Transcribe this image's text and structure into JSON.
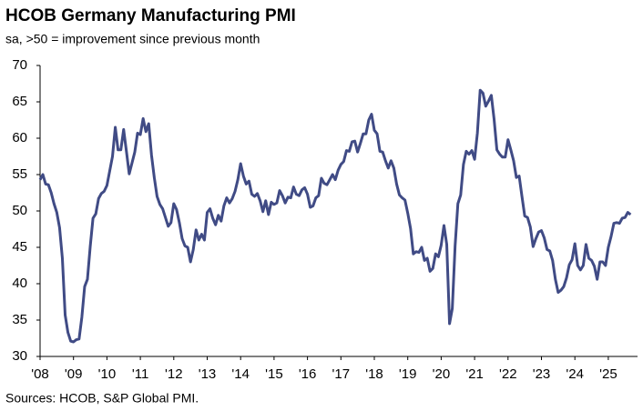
{
  "chart_data": {
    "type": "line",
    "title": "HCOB Germany Manufacturing PMI",
    "subtitle": "sa, >50 = improvement since previous month",
    "source": "Sources: HCOB, S&P Global PMI.",
    "color": "#404b85",
    "ylim": [
      30,
      70
    ],
    "yticks": [
      30,
      35,
      40,
      45,
      50,
      55,
      60,
      65,
      70
    ],
    "grid": false,
    "categories": [
      "'08",
      null,
      null,
      null,
      null,
      null,
      null,
      null,
      null,
      null,
      null,
      null,
      "'09",
      null,
      null,
      null,
      null,
      null,
      null,
      null,
      null,
      null,
      null,
      null,
      "'10",
      null,
      null,
      null,
      null,
      null,
      null,
      null,
      null,
      null,
      null,
      null,
      "'11",
      null,
      null,
      null,
      null,
      null,
      null,
      null,
      null,
      null,
      null,
      null,
      "'12",
      null,
      null,
      null,
      null,
      null,
      null,
      null,
      null,
      null,
      null,
      null,
      "'13",
      null,
      null,
      null,
      null,
      null,
      null,
      null,
      null,
      null,
      null,
      null,
      "'14",
      null,
      null,
      null,
      null,
      null,
      null,
      null,
      null,
      null,
      null,
      null,
      "'15",
      null,
      null,
      null,
      null,
      null,
      null,
      null,
      null,
      null,
      null,
      null,
      "'16",
      null,
      null,
      null,
      null,
      null,
      null,
      null,
      null,
      null,
      null,
      null,
      "'17",
      null,
      null,
      null,
      null,
      null,
      null,
      null,
      null,
      null,
      null,
      null,
      "'18",
      null,
      null,
      null,
      null,
      null,
      null,
      null,
      null,
      null,
      null,
      null,
      "'19",
      null,
      null,
      null,
      null,
      null,
      null,
      null,
      null,
      null,
      null,
      null,
      "'20",
      null,
      null,
      null,
      null,
      null,
      null,
      null,
      null,
      null,
      null,
      null,
      "'21",
      null,
      null,
      null,
      null,
      null,
      null,
      null,
      null,
      null,
      null,
      null,
      "'22",
      null,
      null,
      null,
      null,
      null,
      null,
      null,
      null,
      null,
      null,
      null,
      "'23",
      null,
      null,
      null,
      null,
      null,
      null,
      null,
      null,
      null,
      null,
      null,
      "'24",
      null,
      null,
      null,
      null,
      null,
      null,
      null,
      null,
      null,
      null,
      null,
      "'25",
      null,
      null,
      null,
      null,
      null,
      null,
      null,
      null
    ],
    "values": [
      54.3,
      55.0,
      53.7,
      53.6,
      52.5,
      51.0,
      49.8,
      47.7,
      43.5,
      35.7,
      33.3,
      32.1,
      32.0,
      32.3,
      32.4,
      35.4,
      39.6,
      40.6,
      45.1,
      49.0,
      49.6,
      51.7,
      52.4,
      52.7,
      53.5,
      55.5,
      57.5,
      61.5,
      58.4,
      58.4,
      61.2,
      58.2,
      55.1,
      56.6,
      58.1,
      60.7,
      60.5,
      62.7,
      60.9,
      62.0,
      57.7,
      54.6,
      52.0,
      50.9,
      50.3,
      49.1,
      47.9,
      48.4,
      51.0,
      50.2,
      48.4,
      46.2,
      45.2,
      45.0,
      43.0,
      44.7,
      47.4,
      46.0,
      46.8,
      46.0,
      49.8,
      50.3,
      49.0,
      48.1,
      49.4,
      48.6,
      50.7,
      51.8,
      51.1,
      51.7,
      52.7,
      54.3,
      56.5,
      54.8,
      53.7,
      54.1,
      52.3,
      52.0,
      52.4,
      51.4,
      49.9,
      51.4,
      49.5,
      51.2,
      50.9,
      51.1,
      52.8,
      52.1,
      51.1,
      51.9,
      51.8,
      53.3,
      52.3,
      52.1,
      52.9,
      53.2,
      52.3,
      50.5,
      50.7,
      51.8,
      52.1,
      54.5,
      53.8,
      53.6,
      54.3,
      55.0,
      54.3,
      55.6,
      56.4,
      56.8,
      58.3,
      58.2,
      59.5,
      59.6,
      58.1,
      59.3,
      60.6,
      60.6,
      62.5,
      63.3,
      61.1,
      60.6,
      58.2,
      58.1,
      56.9,
      55.9,
      56.9,
      55.9,
      53.7,
      52.2,
      51.8,
      51.5,
      49.7,
      47.6,
      44.1,
      44.4,
      44.3,
      45.0,
      43.2,
      43.5,
      41.7,
      42.1,
      44.1,
      43.7,
      45.3,
      48.0,
      45.4,
      34.5,
      36.6,
      45.2,
      51.0,
      52.2,
      56.4,
      58.2,
      57.8,
      58.3,
      57.1,
      60.7,
      66.6,
      66.2,
      64.4,
      65.1,
      65.9,
      62.6,
      58.4,
      57.8,
      57.4,
      57.4,
      59.8,
      58.4,
      56.9,
      54.6,
      54.8,
      52.0,
      49.3,
      49.1,
      47.8,
      45.1,
      46.2,
      47.1,
      47.3,
      46.3,
      44.7,
      44.5,
      43.2,
      40.6,
      38.8,
      39.1,
      39.6,
      40.8,
      42.6,
      43.3,
      45.5,
      42.5,
      41.9,
      42.5,
      45.4,
      43.5,
      43.2,
      42.4,
      40.6,
      43.0,
      43.0,
      42.5,
      45.0,
      46.5,
      48.3,
      48.4,
      48.3,
      49.0,
      49.1,
      49.8,
      49.5
    ]
  }
}
